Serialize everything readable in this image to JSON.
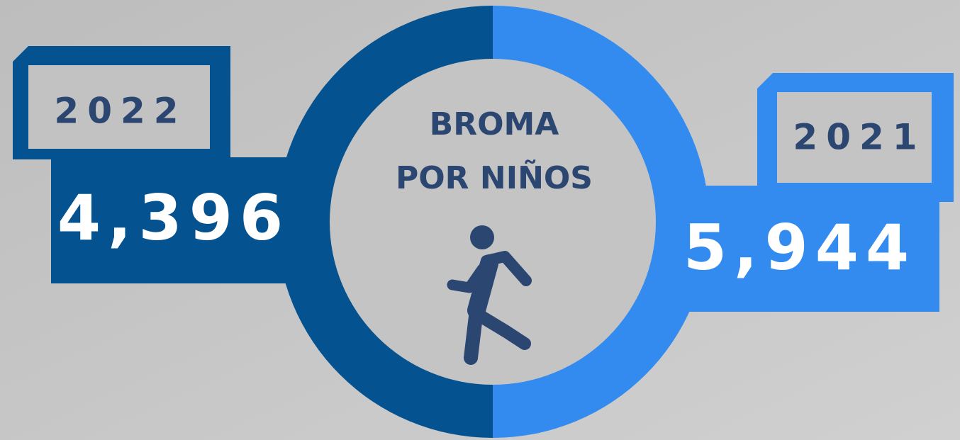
{
  "title": [
    "BROMA",
    "POR NIÑOS"
  ],
  "panels": [
    {
      "year": "2022",
      "value": "4,396"
    },
    {
      "year": "2021",
      "value": "5,944"
    }
  ]
}
